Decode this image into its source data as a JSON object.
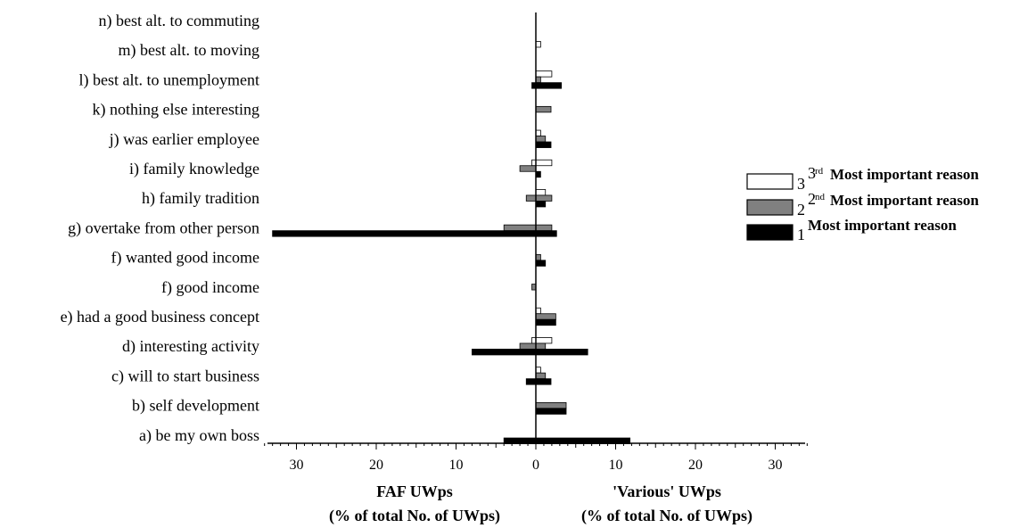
{
  "chart_data": {
    "type": "bar",
    "orientation": "horizontal",
    "layout": "back-to-back",
    "categories": [
      "a) be my own boss",
      "b) self development",
      "c) will to start business",
      "d) interesting activity",
      "e) had a good business concept",
      "f) good income",
      "f) wanted good income",
      "g) overtake from other person",
      "h) family tradition",
      "i) family knowledge",
      "j) was earlier employee",
      "k) nothing else interesting",
      "l) best alt. to unemployment",
      "m) best alt. to moving",
      "n) best alt. to commuting"
    ],
    "panels": [
      {
        "side": "left",
        "title_line1": "FAF UWps",
        "title_line2": "(% of total No. of UWps)",
        "series": [
          {
            "rank": "3",
            "values": [
              0,
              0,
              0,
              0.5,
              0,
              0,
              0,
              0,
              0,
              0.5,
              0,
              0,
              0,
              0,
              0
            ]
          },
          {
            "rank": "2",
            "values": [
              0,
              0,
              0,
              2,
              0,
              0.5,
              0,
              4,
              1.2,
              2,
              0,
              0,
              0,
              0,
              0
            ]
          },
          {
            "rank": "1",
            "values": [
              4,
              0,
              1.2,
              8,
              0,
              0,
              0,
              33,
              0,
              0,
              0,
              0,
              0.5,
              0,
              0
            ]
          }
        ]
      },
      {
        "side": "right",
        "title_line1": "'Various' UWps",
        "title_line2": "(% of total No. of UWps)",
        "series": [
          {
            "rank": "3",
            "values": [
              0,
              0,
              0.6,
              2,
              0.6,
              0,
              0,
              0,
              1.2,
              2,
              0.6,
              0,
              2,
              0.6,
              0
            ]
          },
          {
            "rank": "2",
            "values": [
              0,
              3.8,
              1.2,
              1.2,
              2.5,
              0,
              0.6,
              2,
              2,
              0,
              1.2,
              1.9,
              0.6,
              0,
              0
            ]
          },
          {
            "rank": "1",
            "values": [
              11.8,
              3.8,
              1.9,
              6.5,
              2.5,
              0,
              1.2,
              2.6,
              1.2,
              0.6,
              1.9,
              0,
              3.2,
              0,
              0
            ]
          }
        ]
      }
    ],
    "x_ticks_left": [
      "30",
      "20",
      "10",
      "0"
    ],
    "x_ticks_right": [
      "10",
      "20",
      "30"
    ],
    "xlim": [
      0,
      34
    ],
    "legend": {
      "position": "right",
      "items": [
        {
          "number": "3",
          "sup": "rd",
          "sup_prefix": "3",
          "label": "Most important reason",
          "color": "#ffffff"
        },
        {
          "number": "2",
          "sup": "nd",
          "sup_prefix": "2",
          "label": "Most important reason",
          "color": "#808080"
        },
        {
          "number": "1",
          "sup": "",
          "sup_prefix": "",
          "label": "Most important reason",
          "color": "#000000"
        }
      ]
    },
    "colors": {
      "rank3": "#ffffff",
      "rank2": "#808080",
      "rank1": "#000000",
      "stroke": "#000000"
    }
  }
}
